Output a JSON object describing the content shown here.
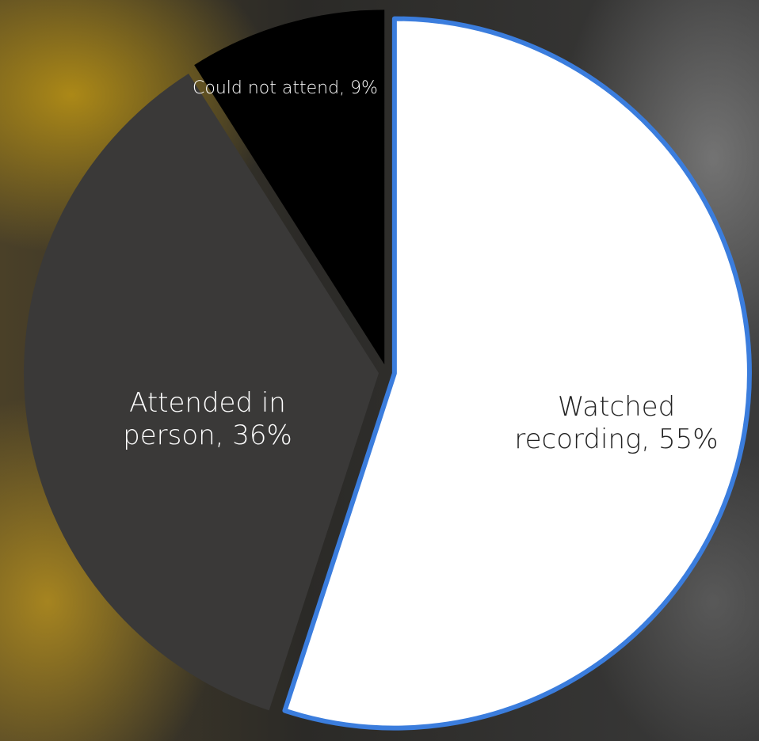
{
  "chart_data": {
    "type": "pie",
    "values": [
      55,
      36,
      9
    ],
    "value_labels": [
      "Watched recording, 55%",
      "Attended in person, 36%",
      "Could not attend, 9%"
    ],
    "colors": [
      "#ffffff",
      "#3a3938",
      "#000000"
    ],
    "highlight": {
      "index": 0,
      "color": "#3b7ddd"
    }
  }
}
